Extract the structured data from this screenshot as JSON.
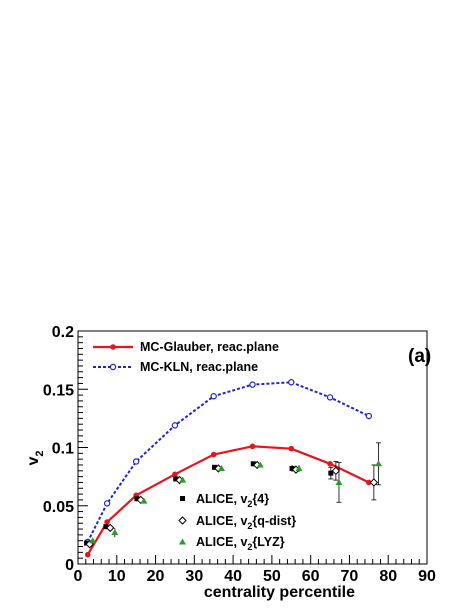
{
  "chart_data": {
    "type": "line",
    "title": "",
    "panel_label": "(a)",
    "xlabel": "centrality percentile",
    "ylabel_main": "v",
    "ylabel_sub": "2",
    "xlim": [
      0,
      90
    ],
    "ylim": [
      0,
      0.2
    ],
    "x_ticks": [
      0,
      10,
      20,
      30,
      40,
      50,
      60,
      70,
      80,
      90
    ],
    "x_tick_labels": [
      "0",
      "10",
      "20",
      "30",
      "40",
      "50",
      "60",
      "70",
      "80",
      "90"
    ],
    "y_ticks": [
      0,
      0.05,
      0.1,
      0.15,
      0.2
    ],
    "y_tick_labels": [
      "0",
      "0.05",
      "0.1",
      "0.15",
      "0.2"
    ],
    "grid": false,
    "legend_top": "top-left",
    "legend_bottom": "bottom-center",
    "series": [
      {
        "name": "MC-Glauber, reac.plane",
        "kind": "model",
        "color": "#e8141c",
        "line": "solid",
        "marker": "filled-circle",
        "x": [
          2.5,
          7.5,
          15,
          25,
          35,
          45,
          55,
          65,
          75
        ],
        "y": [
          0.008,
          0.036,
          0.059,
          0.077,
          0.094,
          0.101,
          0.099,
          0.086,
          0.07
        ]
      },
      {
        "name": "MC-KLN, reac.plane",
        "kind": "model",
        "color": "#1f22d6",
        "line": "dashed",
        "marker": "open-circle",
        "x": [
          2.5,
          7.5,
          15,
          25,
          35,
          45,
          55,
          65,
          75
        ],
        "y": [
          0.019,
          0.052,
          0.088,
          0.119,
          0.144,
          0.154,
          0.156,
          0.143,
          0.127
        ]
      }
    ],
    "data_series": [
      {
        "name_main": "ALICE, v",
        "name_sub": "2",
        "name_tail": "{4}",
        "color": "#000000",
        "marker": "filled-square",
        "x": [
          2.2,
          7.2,
          15.2,
          25.2,
          35.2,
          45.2,
          55.2,
          65.2
        ],
        "y": [
          0.018,
          0.032,
          0.056,
          0.073,
          0.083,
          0.086,
          0.082,
          0.078
        ],
        "err": [
          0.002,
          0.002,
          0.002,
          0.002,
          0.002,
          0.002,
          0.003,
          0.005
        ]
      },
      {
        "name_main": "ALICE, v",
        "name_sub": "2",
        "name_tail": "{q-dist}",
        "color": "#000000",
        "marker": "open-diamond",
        "x": [
          3,
          8.3,
          16.2,
          26.2,
          36.2,
          46.2,
          56.2,
          66.5,
          76.3
        ],
        "y": [
          0.017,
          0.031,
          0.055,
          0.072,
          0.082,
          0.085,
          0.081,
          0.08,
          0.07
        ],
        "err": [
          0.002,
          0.002,
          0.002,
          0.002,
          0.002,
          0.002,
          0.003,
          0.008,
          0.015
        ]
      },
      {
        "name_main": "ALICE, v",
        "name_sub": "2",
        "name_tail": "{LYZ}",
        "color": "#2e9a2e",
        "marker": "filled-triangle",
        "x": [
          3.8,
          9.5,
          17,
          27,
          37,
          47,
          57,
          67.3,
          77.5
        ],
        "y": [
          0.02,
          0.027,
          0.054,
          0.072,
          0.082,
          0.085,
          0.082,
          0.07,
          0.086
        ],
        "err": [
          0.002,
          0.004,
          0.002,
          0.002,
          0.002,
          0.002,
          0.003,
          0.017,
          0.018
        ]
      }
    ]
  }
}
